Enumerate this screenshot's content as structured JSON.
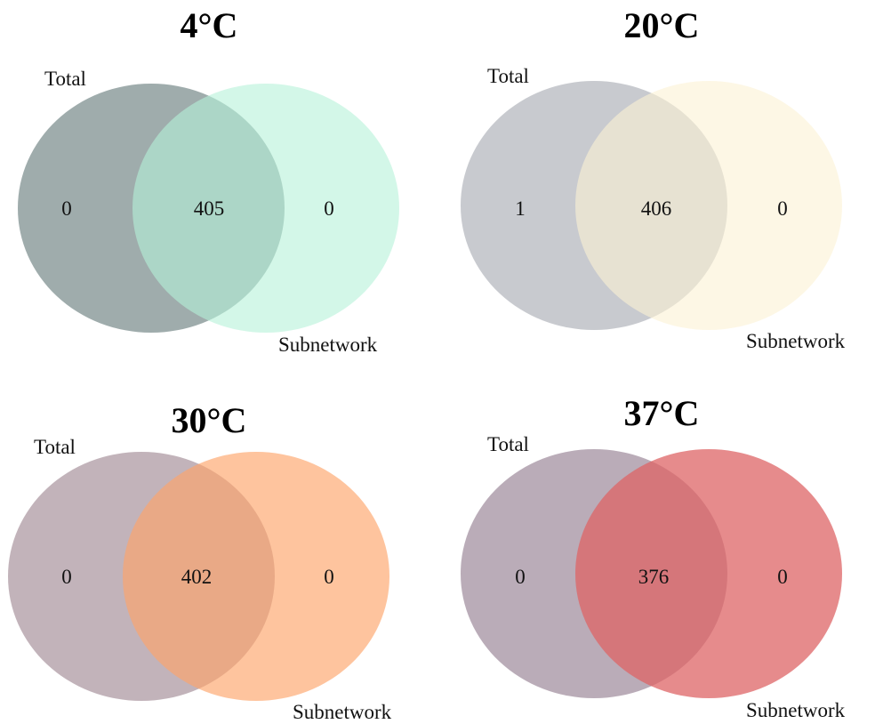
{
  "panels": [
    {
      "title": "4°C",
      "left_set": {
        "name": "Total",
        "only_count": "0",
        "color": "#7a8c8c"
      },
      "right_set": {
        "name": "Subnetwork",
        "only_count": "0",
        "color": "#b5f2d8"
      },
      "intersection": {
        "count": "405",
        "color": "#87b8a6"
      }
    },
    {
      "title": "20°C",
      "left_set": {
        "name": "Total",
        "only_count": "1",
        "color": "#b6b8bf"
      },
      "right_set": {
        "name": "Subnetwork",
        "only_count": "0",
        "color": "#fbf2d4"
      },
      "intersection": {
        "count": "406",
        "color": "#d8d2c1"
      }
    },
    {
      "title": "30°C",
      "left_set": {
        "name": "Total",
        "only_count": "0",
        "color": "#ad9aa3"
      },
      "right_set": {
        "name": "Subnetwork",
        "only_count": "0",
        "color": "#fda56a"
      },
      "intersection": {
        "count": "402",
        "color": "#c08674"
      }
    },
    {
      "title": "37°C",
      "left_set": {
        "name": "Total",
        "only_count": "0",
        "color": "#a08c9c"
      },
      "right_set": {
        "name": "Subnetwork",
        "only_count": "0",
        "color": "#de6465"
      },
      "intersection": {
        "count": "376",
        "color": "#ac6a74"
      }
    }
  ]
}
